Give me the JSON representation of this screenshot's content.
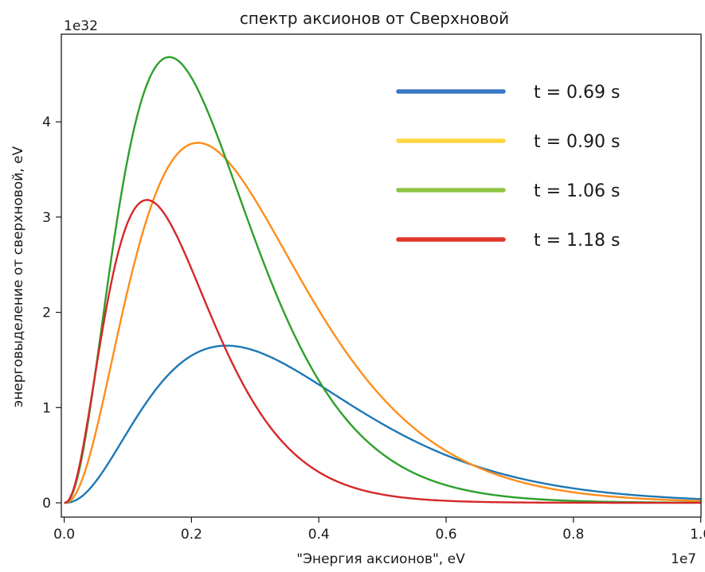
{
  "chart_data": {
    "type": "line",
    "title": "спектр аксионов от Сверхновой",
    "xlabel": "\"Энергия аксионов\", eV",
    "ylabel": "энерговыделение от сверхновой, eV",
    "x_offset_label": "1e7",
    "y_offset_label": "1e32",
    "xlim": [
      -45000.0,
      10004500.0
    ],
    "ylim": [
      -1.5e+31,
      4.92e+32
    ],
    "x_ticks": [
      0,
      2000000,
      4000000,
      6000000,
      8000000,
      10000000
    ],
    "x_tick_labels": [
      "0.0",
      "0.2",
      "0.4",
      "0.6",
      "0.8",
      "1.0"
    ],
    "y_ticks": [
      0,
      1e+32,
      2e+32,
      3e+32,
      4e+32
    ],
    "y_tick_labels": [
      "0",
      "1",
      "2",
      "3",
      "4"
    ],
    "grid": false,
    "legend_position": "top-right",
    "series": [
      {
        "name": "t = 0.69 s",
        "color": "#3a78c4",
        "line_color": "#1f77b4",
        "peak_x": 2550000,
        "peak_y": 1.65e+32
      },
      {
        "name": "t = 0.90 s",
        "color": "#ffd642",
        "line_color": "#ff8c1a",
        "peak_x": 2100000,
        "peak_y": 3.78e+32
      },
      {
        "name": "t = 1.06 s",
        "color": "#8fc444",
        "line_color": "#2ca02c",
        "peak_x": 1650000,
        "peak_y": 4.68e+32
      },
      {
        "name": "t = 1.18 s",
        "color": "#e0352c",
        "line_color": "#d62728",
        "peak_x": 1300000,
        "peak_y": 3.18e+32
      }
    ]
  }
}
